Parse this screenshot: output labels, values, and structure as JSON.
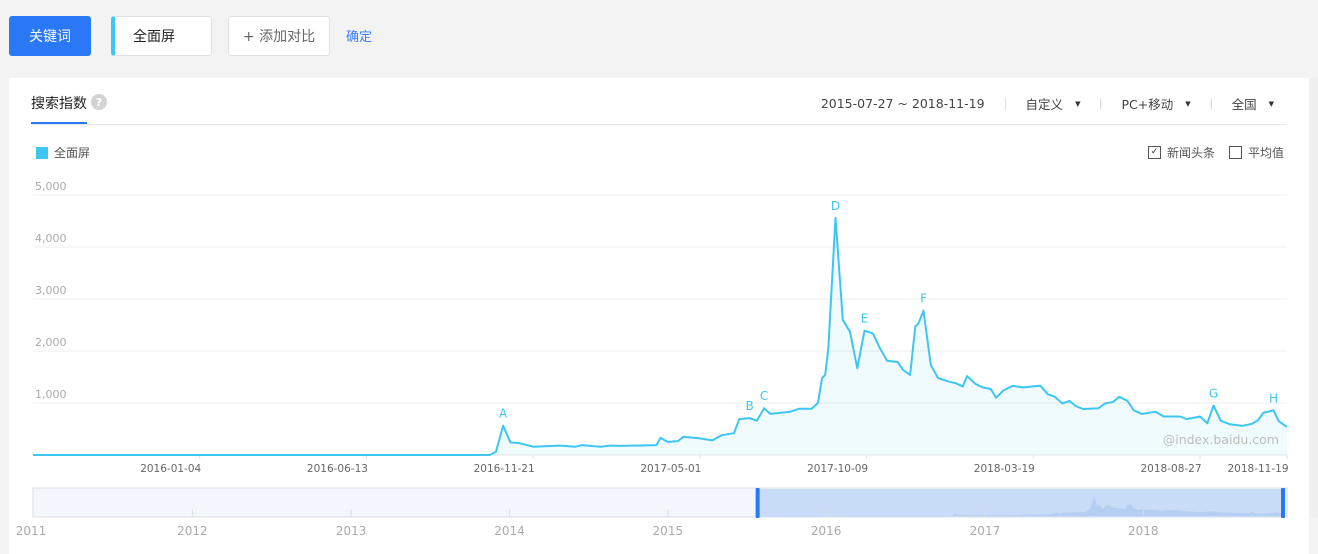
{
  "toolbar": {
    "keyword_label": "关键词",
    "keyword_value": "全面屏",
    "add_compare_label": "+ 添加对比",
    "confirm_label": "确定"
  },
  "card": {
    "tab_label": "搜索指数",
    "help_icon": "?",
    "date_range": "2015-07-27 ~ 2018-11-19",
    "period_select": "自定义",
    "device_select": "PC+移动",
    "region_select": "全国",
    "legend_label": "全面屏",
    "news_option": {
      "label": "新闻头条",
      "checked": true
    },
    "average_option": {
      "label": "平均值",
      "checked": false
    },
    "watermark": "@index.baidu.com"
  },
  "colors": {
    "accent": "#2a78f5",
    "series": "#3ec6f3",
    "confirm_link": "#3b7cff"
  },
  "chart_data": {
    "type": "area",
    "ylim": [
      0,
      5000
    ],
    "yticks": [
      "1,000",
      "2,000",
      "3,000",
      "4,000",
      "5,000"
    ],
    "ytick_values": [
      1000,
      2000,
      3000,
      4000,
      5000
    ],
    "xlim": [
      "2015-07-27",
      "2018-11-19"
    ],
    "xticks": [
      "2016-01-04",
      "2016-06-13",
      "2016-11-21",
      "2017-05-01",
      "2017-10-09",
      "2018-03-19",
      "2018-08-27",
      "2018-11-19"
    ],
    "grid": true,
    "series": [
      {
        "name": "全面屏",
        "points": [
          [
            "2015-07-27",
            0
          ],
          [
            "2016-10-10",
            0
          ],
          [
            "2016-10-16",
            60
          ],
          [
            "2016-10-23",
            565
          ],
          [
            "2016-10-30",
            240
          ],
          [
            "2016-11-07",
            230
          ],
          [
            "2016-11-21",
            160
          ],
          [
            "2016-12-17",
            180
          ],
          [
            "2017-01-01",
            160
          ],
          [
            "2017-01-07",
            190
          ],
          [
            "2017-01-25",
            160
          ],
          [
            "2017-02-03",
            180
          ],
          [
            "2017-02-13",
            175
          ],
          [
            "2017-03-20",
            190
          ],
          [
            "2017-03-24",
            330
          ],
          [
            "2017-03-31",
            250
          ],
          [
            "2017-04-10",
            270
          ],
          [
            "2017-04-15",
            350
          ],
          [
            "2017-05-01",
            320
          ],
          [
            "2017-05-13",
            280
          ],
          [
            "2017-05-22",
            380
          ],
          [
            "2017-06-03",
            420
          ],
          [
            "2017-06-08",
            690
          ],
          [
            "2017-06-18",
            710
          ],
          [
            "2017-06-25",
            660
          ],
          [
            "2017-07-02",
            900
          ],
          [
            "2017-07-08",
            790
          ],
          [
            "2017-07-27",
            830
          ],
          [
            "2017-08-05",
            890
          ],
          [
            "2017-08-17",
            890
          ],
          [
            "2017-08-23",
            1000
          ],
          [
            "2017-08-27",
            1480
          ],
          [
            "2017-08-30",
            1540
          ],
          [
            "2017-09-02",
            2050
          ],
          [
            "2017-09-09",
            4560
          ],
          [
            "2017-09-16",
            2600
          ],
          [
            "2017-09-23",
            2370
          ],
          [
            "2017-09-30",
            1670
          ],
          [
            "2017-10-07",
            2390
          ],
          [
            "2017-10-15",
            2340
          ],
          [
            "2017-10-22",
            2050
          ],
          [
            "2017-10-29",
            1810
          ],
          [
            "2017-11-08",
            1790
          ],
          [
            "2017-11-13",
            1640
          ],
          [
            "2017-11-20",
            1540
          ],
          [
            "2017-11-25",
            2470
          ],
          [
            "2017-11-28",
            2530
          ],
          [
            "2017-12-03",
            2775
          ],
          [
            "2017-12-10",
            1730
          ],
          [
            "2017-12-17",
            1480
          ],
          [
            "2017-12-26",
            1420
          ],
          [
            "2018-01-03",
            1380
          ],
          [
            "2018-01-10",
            1320
          ],
          [
            "2018-01-14",
            1520
          ],
          [
            "2018-01-22",
            1370
          ],
          [
            "2018-01-29",
            1300
          ],
          [
            "2018-02-06",
            1270
          ],
          [
            "2018-02-11",
            1100
          ],
          [
            "2018-02-18",
            1240
          ],
          [
            "2018-02-27",
            1330
          ],
          [
            "2018-03-09",
            1300
          ],
          [
            "2018-03-26",
            1330
          ],
          [
            "2018-04-02",
            1170
          ],
          [
            "2018-04-09",
            1120
          ],
          [
            "2018-04-16",
            990
          ],
          [
            "2018-04-23",
            1040
          ],
          [
            "2018-04-29",
            940
          ],
          [
            "2018-05-06",
            885
          ],
          [
            "2018-05-21",
            900
          ],
          [
            "2018-05-27",
            990
          ],
          [
            "2018-06-04",
            1020
          ],
          [
            "2018-06-10",
            1120
          ],
          [
            "2018-06-18",
            1040
          ],
          [
            "2018-06-24",
            860
          ],
          [
            "2018-07-02",
            790
          ],
          [
            "2018-07-15",
            830
          ],
          [
            "2018-07-23",
            740
          ],
          [
            "2018-08-08",
            740
          ],
          [
            "2018-08-14",
            690
          ],
          [
            "2018-08-27",
            740
          ],
          [
            "2018-09-03",
            610
          ],
          [
            "2018-09-09",
            950
          ],
          [
            "2018-09-16",
            660
          ],
          [
            "2018-09-25",
            590
          ],
          [
            "2018-10-07",
            560
          ],
          [
            "2018-10-16",
            600
          ],
          [
            "2018-10-22",
            670
          ],
          [
            "2018-10-27",
            810
          ],
          [
            "2018-11-06",
            860
          ],
          [
            "2018-11-11",
            650
          ],
          [
            "2018-11-19",
            540
          ]
        ]
      }
    ],
    "annotations": [
      {
        "label": "A",
        "date": "2016-10-23"
      },
      {
        "label": "B",
        "date": "2017-06-18"
      },
      {
        "label": "C",
        "date": "2017-07-02"
      },
      {
        "label": "D",
        "date": "2017-09-09"
      },
      {
        "label": "E",
        "date": "2017-10-07"
      },
      {
        "label": "F",
        "date": "2017-12-03"
      },
      {
        "label": "G",
        "date": "2018-09-09"
      },
      {
        "label": "H",
        "date": "2018-11-06"
      }
    ],
    "navigator": {
      "range": [
        "2011-01-01",
        "2018-11-19"
      ],
      "selected": [
        "2015-07-27",
        "2018-11-19"
      ],
      "year_labels": [
        "2011",
        "2012",
        "2013",
        "2014",
        "2015",
        "2016",
        "2017",
        "2018"
      ]
    }
  }
}
